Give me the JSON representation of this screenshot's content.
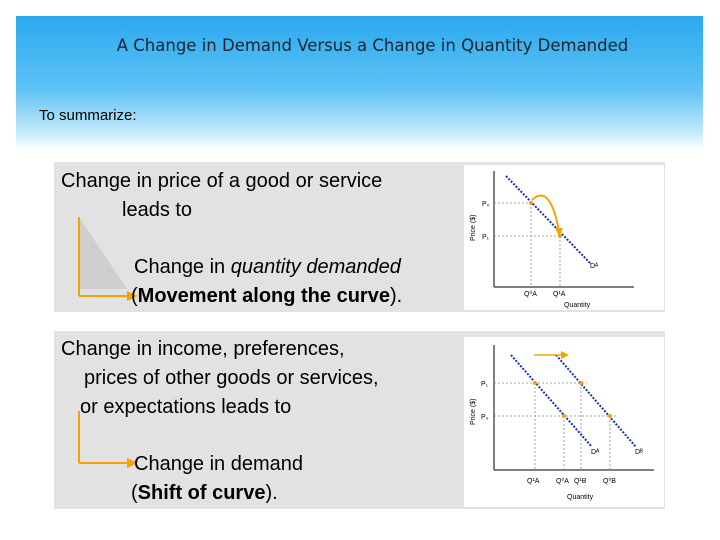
{
  "slide": {
    "title": "A Change in Demand Versus a Change in Quantity Demanded",
    "subtitle": "To summarize:"
  },
  "panel1": {
    "line1": "Change in price of a good or service",
    "line2": "leads to",
    "result1_pre": "Change in ",
    "result1_em": "quantity demanded",
    "result2_open": "(",
    "result2_bold": "Movement along the curve",
    "result2_close": ")."
  },
  "panel2": {
    "line1": "Change in income, preferences,",
    "line2": "prices of other goods or services,",
    "line3": "or expectations leads to",
    "result1": "Change in demand",
    "result2_open": "(",
    "result2_bold": "Shift of curve",
    "result2_close": ")."
  },
  "chart1": {
    "ylabel": "Price ($)",
    "xlabel": "Quantity",
    "p_upper": "P₀",
    "p_lower": "P₁",
    "q_left": "Q⁰A",
    "q_right": "Q¹A",
    "curve_label": "Dᴬ"
  },
  "chart2": {
    "ylabel": "Price ($)",
    "xlabel": "Quantity",
    "p_upper": "P₁",
    "p_lower": "P₀",
    "q1": "Q¹A",
    "q2": "Q⁰A",
    "q3": "Q¹B",
    "q4": "Q⁰B",
    "curve_a": "Dᴬ",
    "curve_b": "Dᴮ"
  },
  "colors": {
    "header_top": "#2aa9ee",
    "panel": "#e2e2e2",
    "demand_line": "#1a2fb0",
    "arrow": "#f4a300",
    "guide": "#888888"
  }
}
